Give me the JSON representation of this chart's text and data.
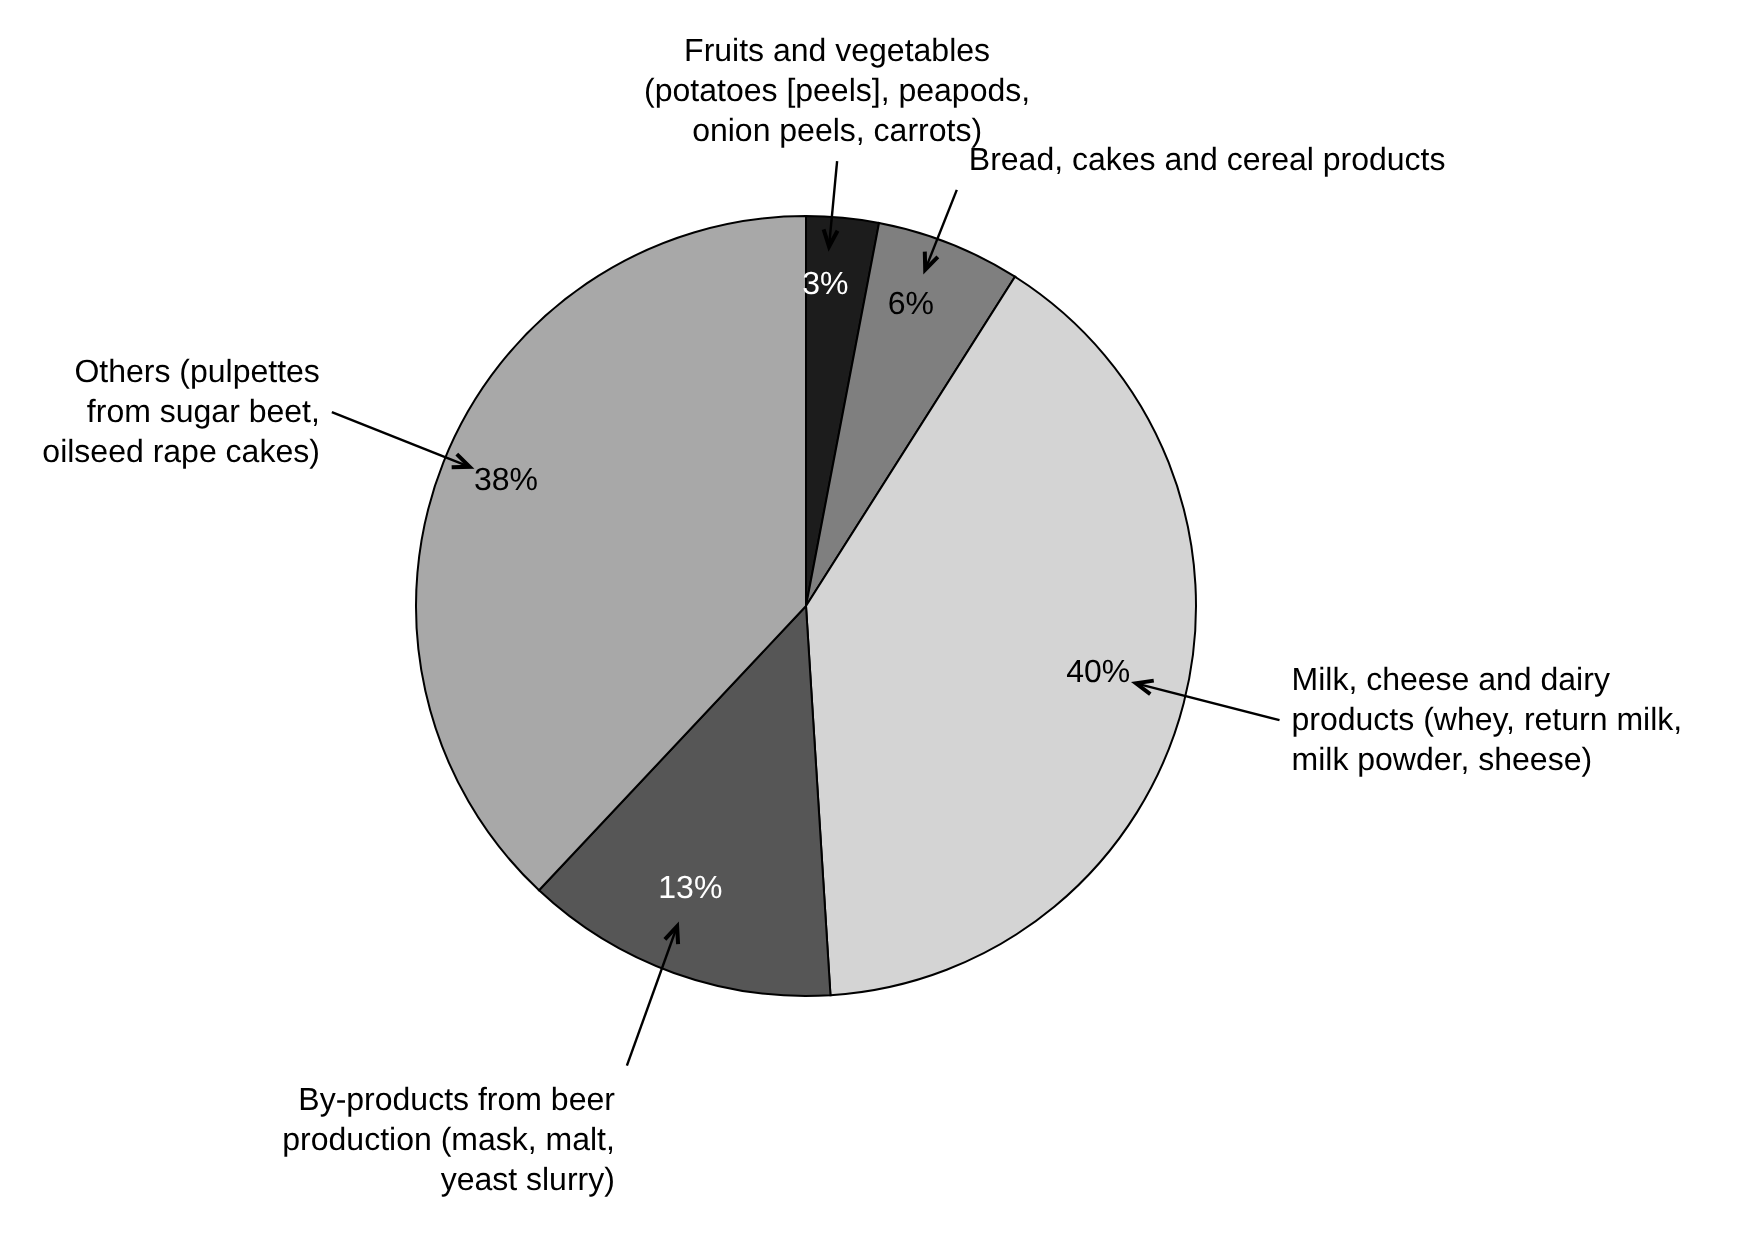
{
  "chart_data": {
    "type": "pie",
    "categories": [
      "Fruits and vegetables\n(potatoes [peels], peapods,\nonion peels, carrots)",
      "Bread, cakes and cereal products",
      "Milk, cheese and dairy\nproducts (whey, return milk,\nmilk powder, sheese)",
      "By-products from beer\nproduction (mask, malt,\nyeast slurry)",
      "Others (pulpettes\nfrom sugar beet,\noilseed rape cakes)"
    ],
    "values": [
      3,
      6,
      40,
      13,
      38
    ],
    "value_labels": [
      "3%",
      "6%",
      "40%",
      "13%",
      "38%"
    ],
    "colors": [
      "#1c1c1c",
      "#7f7f7f",
      "#d4d4d4",
      "#565656",
      "#a8a8a8"
    ]
  }
}
